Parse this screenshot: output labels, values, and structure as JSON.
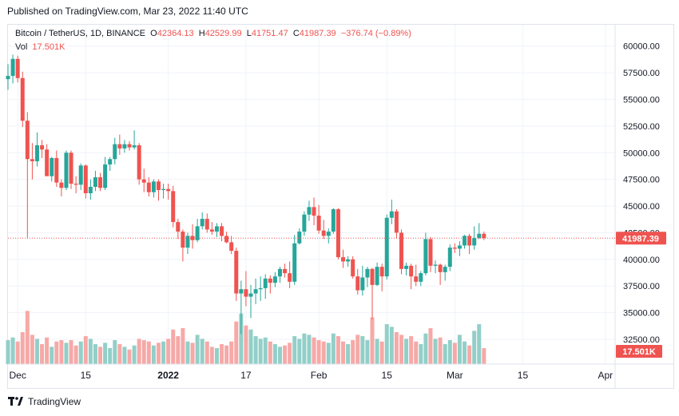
{
  "header": {
    "published": "Published on TradingView.com, Mar 23, 2022 11:40 UTC"
  },
  "legend": {
    "symbol": "Bitcoin / TetherUS, 1D, BINANCE",
    "o_label": "O",
    "o": "42364.13",
    "h_label": "H",
    "h": "42529.99",
    "l_label": "L",
    "l": "41751.47",
    "c_label": "C",
    "c": "41987.39",
    "change": "−376.74 (−0.89%)",
    "vol_label": "Vol",
    "vol": "17.501K"
  },
  "price_axis": {
    "ticks": [
      "60000.00",
      "57500.00",
      "55000.00",
      "52500.00",
      "50000.00",
      "47500.00",
      "45000.00",
      "42500.00",
      "40000.00",
      "37500.00",
      "35000.00",
      "32500.00"
    ],
    "last_price": "41987.39",
    "last_volume": "17.501K"
  },
  "time_axis": {
    "ticks": [
      "Dec",
      "15",
      "2022",
      "17",
      "Feb",
      "15",
      "Mar",
      "15",
      "Apr"
    ]
  },
  "footer": {
    "brand": "TradingView"
  },
  "colors": {
    "up": "#26a69a",
    "down": "#ef5350",
    "up_vol": "#92cfc8",
    "down_vol": "#f6a9a7",
    "grid": "#f0f3fa"
  },
  "chart_data": {
    "type": "candlestick",
    "title": "Bitcoin / TetherUS, 1D, BINANCE",
    "ylim": [
      31000,
      62000
    ],
    "x_range": [
      "2021-11-29",
      "2022-04-03"
    ],
    "x_start": "2021-11-29",
    "candles": [
      [
        56900,
        58300,
        55900,
        57200,
        18
      ],
      [
        57200,
        59200,
        56500,
        58800,
        20
      ],
      [
        58800,
        59100,
        56600,
        57000,
        17
      ],
      [
        57000,
        57600,
        52400,
        53000,
        24
      ],
      [
        53000,
        53800,
        42000,
        49400,
        40
      ],
      [
        49400,
        50900,
        47500,
        49200,
        22
      ],
      [
        49200,
        51900,
        48700,
        50700,
        19
      ],
      [
        50700,
        51200,
        49500,
        50300,
        15
      ],
      [
        50300,
        50800,
        47800,
        47800,
        20
      ],
      [
        47800,
        49600,
        47300,
        49500,
        13
      ],
      [
        49500,
        50200,
        46800,
        47200,
        17
      ],
      [
        47200,
        47500,
        45900,
        46700,
        18
      ],
      [
        46700,
        50200,
        46500,
        50000,
        16
      ],
      [
        50000,
        50200,
        46600,
        47100,
        18
      ],
      [
        47100,
        47800,
        46200,
        47000,
        14
      ],
      [
        47000,
        49000,
        46500,
        48800,
        17
      ],
      [
        48800,
        48900,
        45700,
        46200,
        21
      ],
      [
        46200,
        47500,
        45600,
        46800,
        19
      ],
      [
        46800,
        48300,
        46400,
        47700,
        15
      ],
      [
        47700,
        48100,
        46400,
        46700,
        13
      ],
      [
        46700,
        49600,
        46500,
        48900,
        16
      ],
      [
        48900,
        49600,
        48300,
        49400,
        12
      ],
      [
        49400,
        51400,
        48900,
        50800,
        18
      ],
      [
        50800,
        51700,
        49800,
        50400,
        15
      ],
      [
        50400,
        51200,
        50000,
        50800,
        13
      ],
      [
        50800,
        51100,
        50200,
        50500,
        11
      ],
      [
        50500,
        52100,
        50300,
        50700,
        14
      ],
      [
        50700,
        50900,
        47000,
        47500,
        19
      ],
      [
        47500,
        48500,
        46300,
        47200,
        18
      ],
      [
        47200,
        47700,
        45900,
        46300,
        17
      ],
      [
        46300,
        47500,
        45800,
        47300,
        14
      ],
      [
        47300,
        47500,
        45500,
        46500,
        16
      ],
      [
        46500,
        47100,
        45700,
        46600,
        17
      ],
      [
        46600,
        47100,
        45600,
        46400,
        19
      ],
      [
        46400,
        46900,
        43000,
        43500,
        26
      ],
      [
        43500,
        43800,
        41900,
        42600,
        21
      ],
      [
        42600,
        42800,
        39800,
        41100,
        27
      ],
      [
        41100,
        42500,
        40500,
        42200,
        17
      ],
      [
        42200,
        43300,
        41000,
        41800,
        16
      ],
      [
        41800,
        43800,
        41600,
        43100,
        22
      ],
      [
        43100,
        44400,
        42800,
        43800,
        19
      ],
      [
        43800,
        44300,
        42500,
        42800,
        17
      ],
      [
        42800,
        43500,
        42300,
        42600,
        13
      ],
      [
        42600,
        43400,
        42100,
        43100,
        12
      ],
      [
        43100,
        43400,
        41700,
        42200,
        15
      ],
      [
        42200,
        42600,
        41500,
        41600,
        14
      ],
      [
        41600,
        42200,
        40500,
        40800,
        17
      ],
      [
        40800,
        41100,
        36100,
        36800,
        32
      ],
      [
        36800,
        38000,
        33000,
        37200,
        38
      ],
      [
        37200,
        38900,
        35600,
        36500,
        29
      ],
      [
        36500,
        37600,
        34500,
        36800,
        26
      ],
      [
        36800,
        38200,
        35800,
        37200,
        21
      ],
      [
        37200,
        38400,
        36100,
        37300,
        19
      ],
      [
        37300,
        38600,
        36300,
        38200,
        20
      ],
      [
        38200,
        38500,
        36800,
        37800,
        17
      ],
      [
        37800,
        38800,
        37400,
        38400,
        15
      ],
      [
        38400,
        39300,
        37800,
        39100,
        13
      ],
      [
        39100,
        39600,
        38300,
        38700,
        14
      ],
      [
        38700,
        39800,
        37300,
        37900,
        16
      ],
      [
        37900,
        42300,
        37600,
        41500,
        21
      ],
      [
        41500,
        42900,
        41400,
        42600,
        19
      ],
      [
        42600,
        44500,
        42200,
        44200,
        23
      ],
      [
        44200,
        45500,
        43600,
        44900,
        22
      ],
      [
        44900,
        45800,
        43200,
        44100,
        20
      ],
      [
        44100,
        45100,
        42400,
        42700,
        18
      ],
      [
        42700,
        43700,
        41900,
        42200,
        17
      ],
      [
        42200,
        42900,
        41500,
        42600,
        16
      ],
      [
        42600,
        44800,
        42400,
        44700,
        23
      ],
      [
        44700,
        44800,
        40000,
        40200,
        21
      ],
      [
        40200,
        40900,
        39200,
        39800,
        17
      ],
      [
        39800,
        40300,
        39300,
        40000,
        15
      ],
      [
        40000,
        40300,
        38200,
        38400,
        18
      ],
      [
        38400,
        39100,
        36700,
        37100,
        22
      ],
      [
        37100,
        39400,
        36600,
        38300,
        21
      ],
      [
        38300,
        39300,
        37400,
        39100,
        18
      ],
      [
        39100,
        39200,
        34400,
        37600,
        35
      ],
      [
        37600,
        39700,
        37500,
        39300,
        19
      ],
      [
        39300,
        39600,
        37000,
        38400,
        17
      ],
      [
        38400,
        44200,
        38100,
        43900,
        30
      ],
      [
        43900,
        45600,
        43300,
        44500,
        28
      ],
      [
        44500,
        44700,
        42000,
        42500,
        24
      ],
      [
        42500,
        42800,
        38600,
        39100,
        22
      ],
      [
        39100,
        39700,
        38500,
        39400,
        19
      ],
      [
        39400,
        39600,
        37200,
        38400,
        21
      ],
      [
        38400,
        39500,
        37500,
        37900,
        17
      ],
      [
        37900,
        38900,
        37500,
        38700,
        15
      ],
      [
        38700,
        42500,
        38500,
        41900,
        23
      ],
      [
        41900,
        42100,
        38800,
        39400,
        27
      ],
      [
        39400,
        39900,
        38700,
        39500,
        19
      ],
      [
        39500,
        39600,
        37600,
        38800,
        20
      ],
      [
        38800,
        39500,
        38000,
        39300,
        15
      ],
      [
        39300,
        41400,
        38900,
        41100,
        18
      ],
      [
        41100,
        41500,
        40600,
        41000,
        16
      ],
      [
        41000,
        41700,
        40300,
        41300,
        22
      ],
      [
        41300,
        42300,
        41000,
        42200,
        17
      ],
      [
        42200,
        42400,
        40500,
        41300,
        14
      ],
      [
        41300,
        43100,
        40900,
        42000,
        25
      ],
      [
        42000,
        43400,
        41900,
        42400,
        30
      ],
      [
        42400,
        42600,
        41800,
        42000,
        12
      ]
    ]
  }
}
